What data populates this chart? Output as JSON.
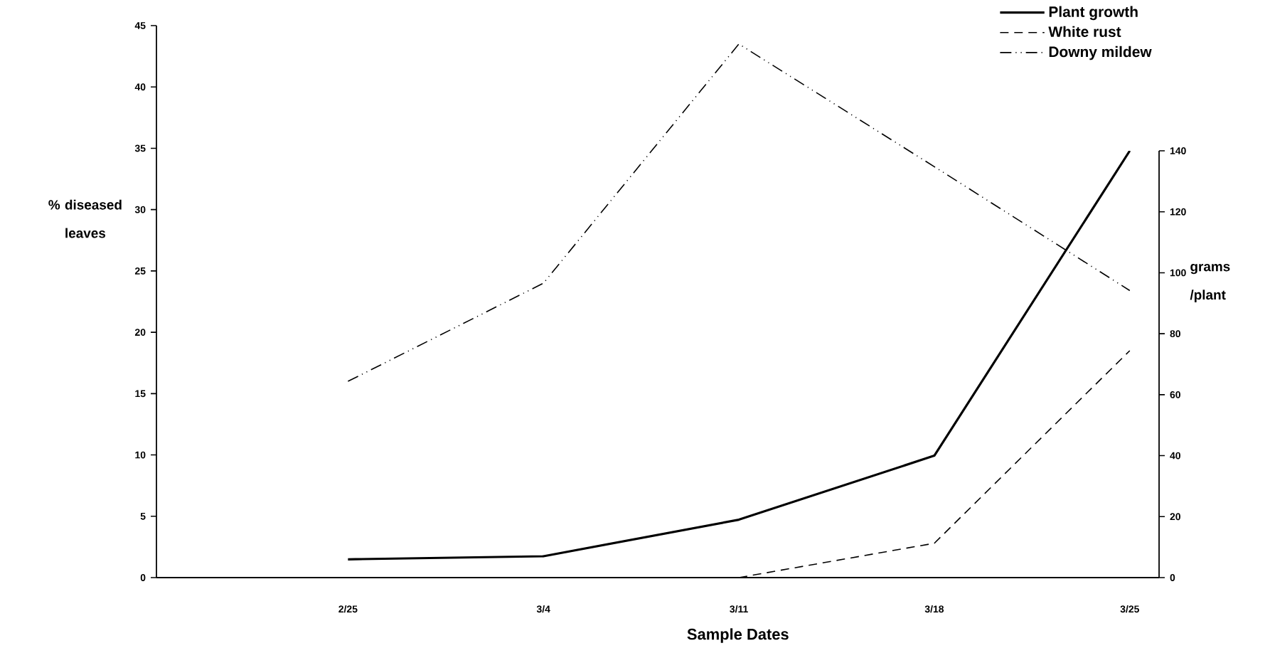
{
  "chart_data": {
    "type": "line",
    "xlabel": "Sample Dates",
    "ylabel": "% diseased leaves",
    "y2label": "grams /plant",
    "categories": [
      "2/25",
      "3/4",
      "3/11",
      "3/18",
      "3/25"
    ],
    "series": [
      {
        "name": "Plant growth",
        "color": "#000000",
        "axis": "y2",
        "line_style": "solid",
        "values": [
          6,
          7,
          19,
          40,
          140
        ]
      },
      {
        "name": "White rust",
        "color": "#000000",
        "line_style": "dashed",
        "values": [
          null,
          null,
          0,
          2.8,
          18.5
        ]
      },
      {
        "name": "Downy mildew",
        "color": "#000000",
        "line_style": "dashdotdotted",
        "values": [
          16,
          24,
          43.5,
          33.5,
          23.4
        ]
      }
    ],
    "ylim": [
      0,
      45
    ],
    "yticks": [
      0,
      5,
      10,
      15,
      20,
      25,
      30,
      35,
      40,
      45
    ],
    "y2lim": [
      0,
      140
    ],
    "y2ticks": [
      0,
      20,
      40,
      60,
      80,
      100,
      120,
      140
    ],
    "legend": "top right",
    "grid": false,
    "marker": "none"
  }
}
